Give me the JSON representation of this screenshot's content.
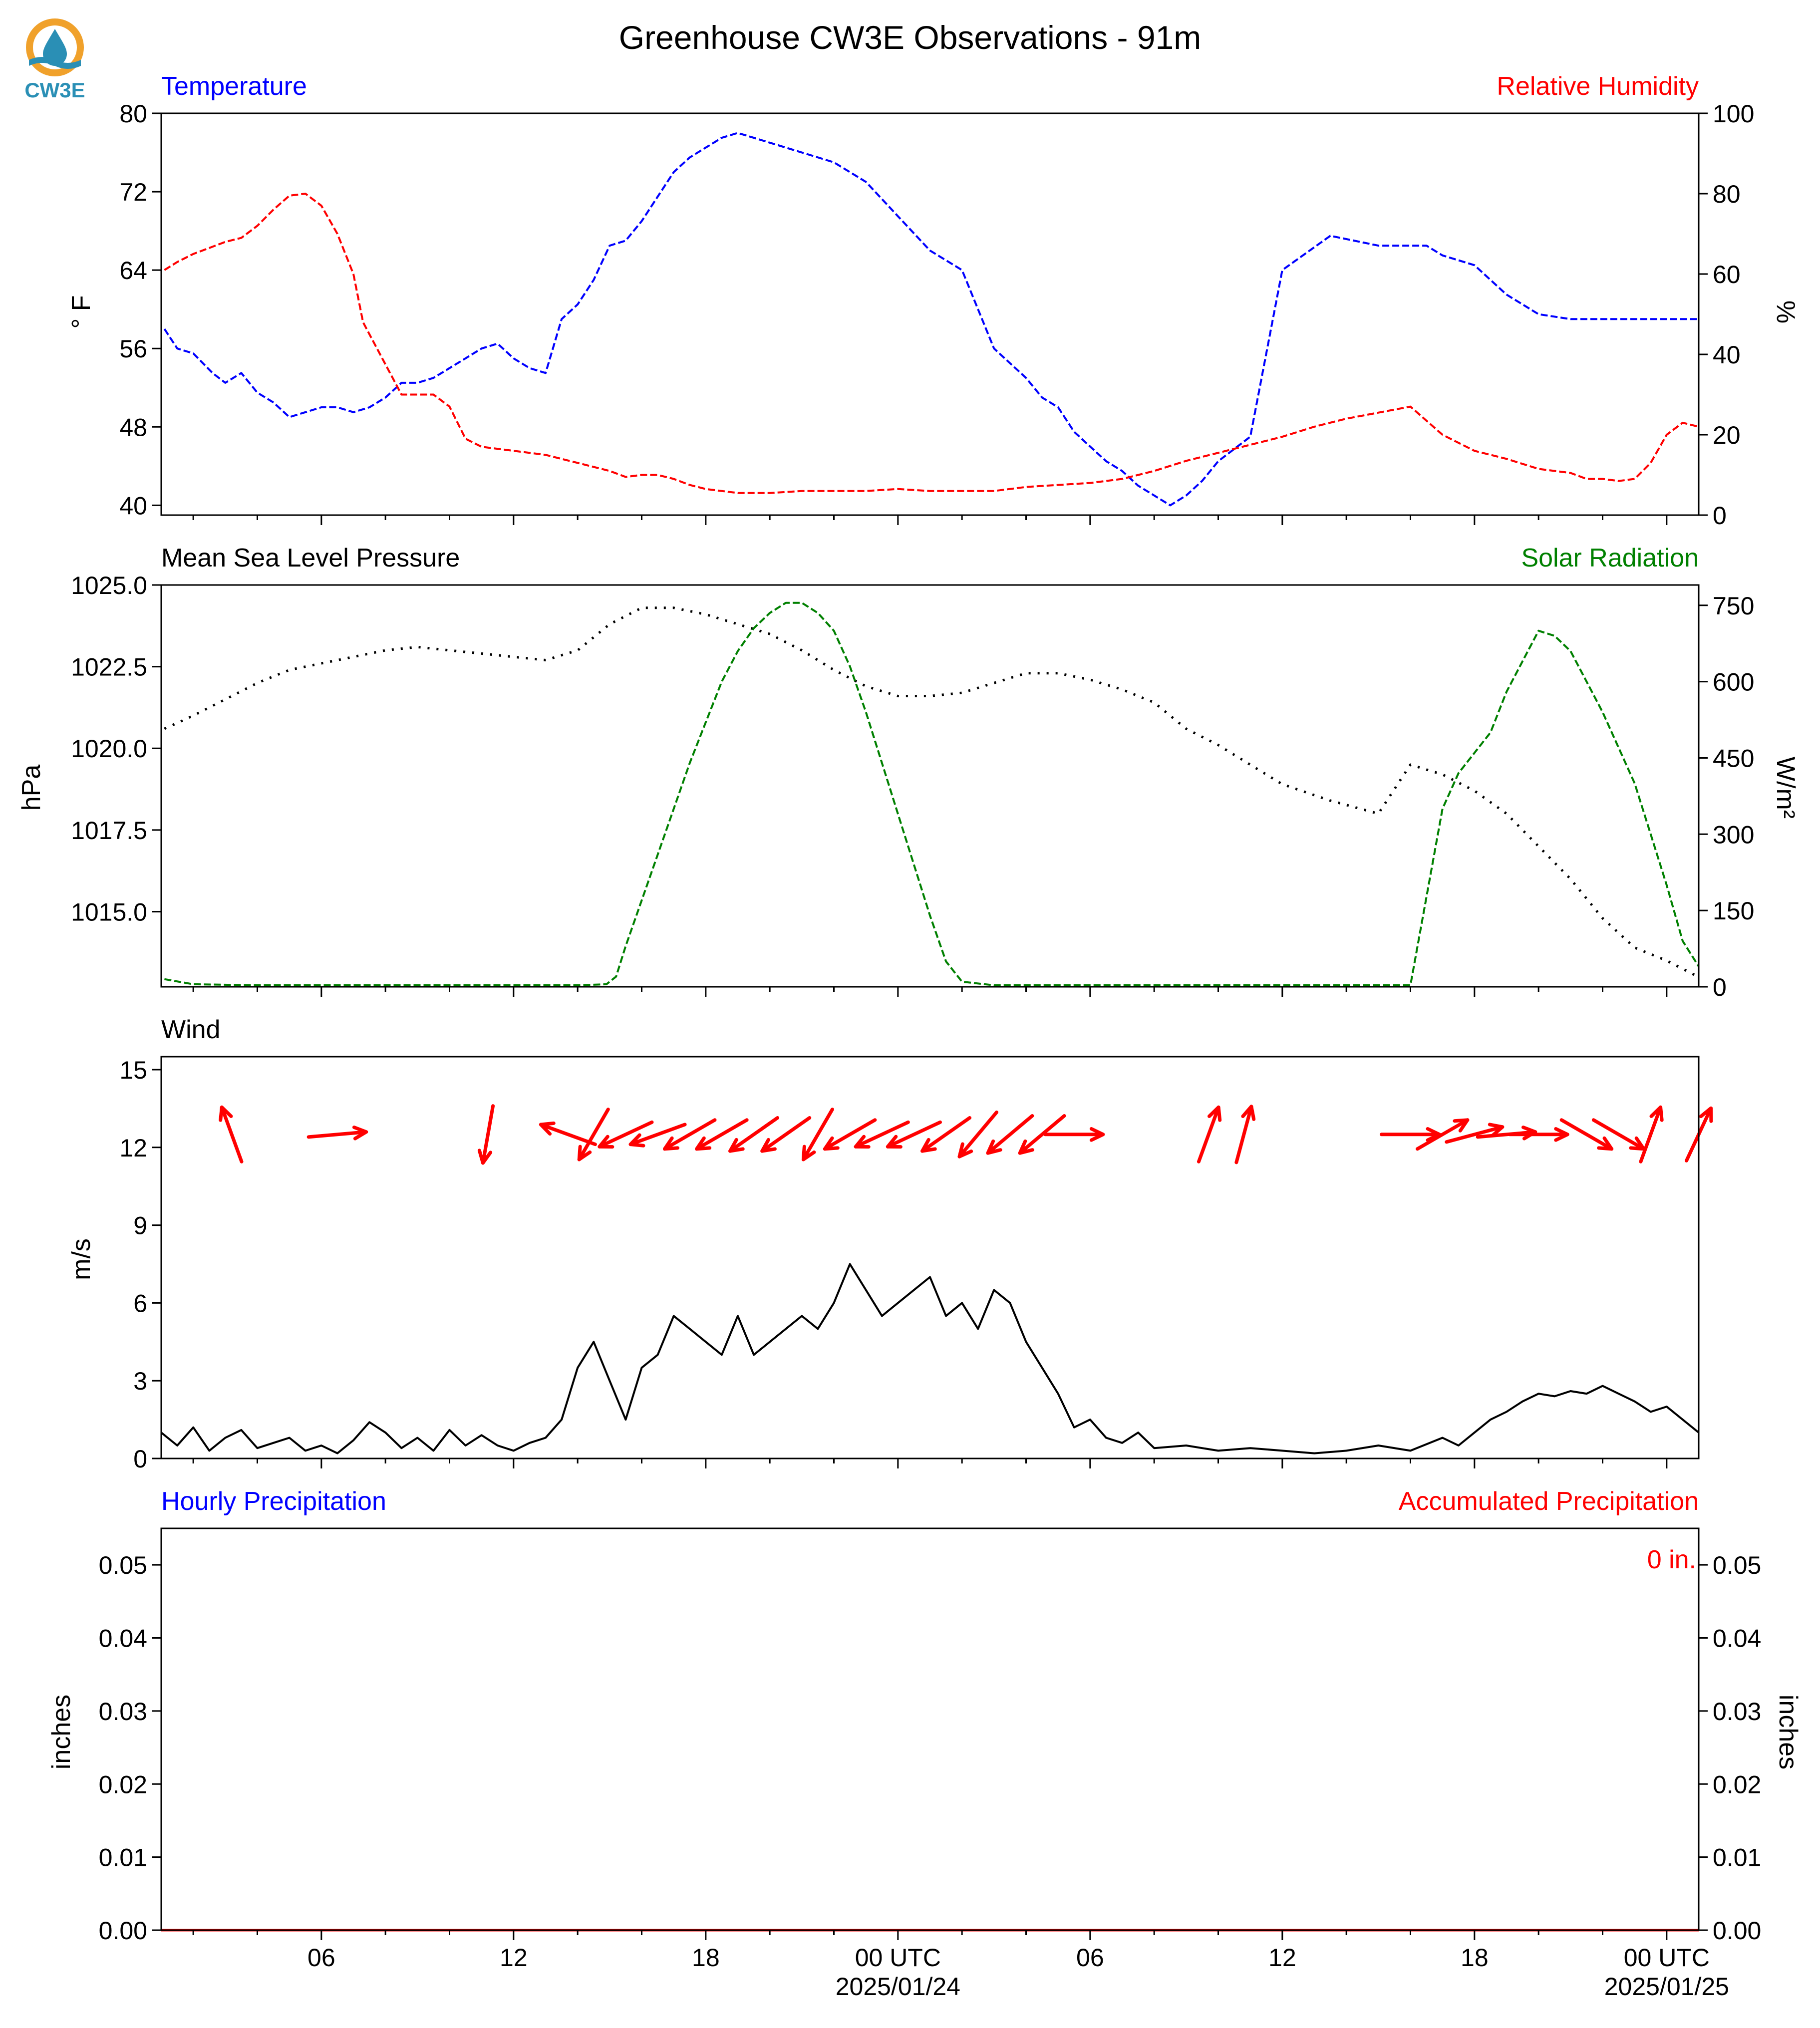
{
  "title": "Greenhouse CW3E Observations - 91m",
  "logo": {
    "text": "CW3E",
    "colors": {
      "ring": "#f0a12b",
      "drop": "#2a8fb5",
      "text": "#2a8fb5"
    }
  },
  "x_axis": {
    "tick_labels": [
      "06",
      "12",
      "18",
      "00 UTC",
      "06",
      "12",
      "18",
      "00 UTC"
    ],
    "date_labels": [
      "2025/01/24",
      "2025/01/25"
    ],
    "tick_hours": [
      6,
      12,
      18,
      24,
      30,
      36,
      42,
      48
    ],
    "major_every_h": 6,
    "minor_every_h": 2,
    "range_h": [
      1,
      49
    ]
  },
  "colors": {
    "temperature": "#0000ff",
    "humidity": "#ff0000",
    "pressure": "#000000",
    "solar": "#008000",
    "wind": "#000000",
    "barbs": "#ff0000",
    "precip_hourly": "#0000ff",
    "precip_accum": "#ff0000"
  },
  "chart_data": [
    {
      "type": "line",
      "panel": "temperature_humidity",
      "left_title": "Temperature",
      "right_title": "Relative Humidity",
      "ylabel_left": "° F",
      "ylabel_right": "%",
      "ylim_left": [
        39,
        80
      ],
      "ylim_right": [
        0,
        100
      ],
      "yticks_left": [
        40,
        48,
        56,
        64,
        72,
        80
      ],
      "yticks_right": [
        0,
        20,
        40,
        60,
        80,
        100
      ],
      "series": [
        {
          "name": "Temperature",
          "axis": "left",
          "color": "#0000ff",
          "style": "dashed",
          "x": [
            1.1,
            1.5,
            2.0,
            2.6,
            3.0,
            3.5,
            4.0,
            4.5,
            5.0,
            5.5,
            6.0,
            6.5,
            7.0,
            7.5,
            8.0,
            8.5,
            9.0,
            9.5,
            10.0,
            10.5,
            11.0,
            11.5,
            12.0,
            12.5,
            13.0,
            13.5,
            14.0,
            14.5,
            15.0,
            15.5,
            16.0,
            16.5,
            17.0,
            17.5,
            18.0,
            18.5,
            19.0,
            19.5,
            20.0,
            20.5,
            21.0,
            22.0,
            23.0,
            24.0,
            25.0,
            26.0,
            26.5,
            27.0,
            27.5,
            28.0,
            28.5,
            29.0,
            29.5,
            30.0,
            30.5,
            31.0,
            31.5,
            32.0,
            32.5,
            33.0,
            33.5,
            34.0,
            35.0,
            36.0,
            37.5,
            39.0,
            40.5,
            41.0,
            41.5,
            42.0,
            42.5,
            43.0,
            44.0,
            45.0,
            45.5,
            46.0,
            46.5,
            47.0,
            47.5,
            48.0,
            48.5,
            49.0
          ],
          "y": [
            58,
            56,
            55.5,
            53.5,
            52.5,
            53.5,
            51.5,
            50.5,
            49,
            49.5,
            50,
            50,
            49.5,
            50,
            51,
            52.5,
            52.5,
            53,
            54,
            55,
            56,
            56.5,
            55,
            54,
            53.5,
            59,
            60.5,
            63,
            66.5,
            67,
            69,
            71.5,
            74,
            75.5,
            76.5,
            77.5,
            78,
            77.5,
            77,
            76.5,
            76,
            75,
            73,
            69.5,
            66,
            64,
            60,
            56,
            54.5,
            53,
            51,
            50,
            47.5,
            46,
            44.5,
            43.5,
            42,
            41,
            40,
            41,
            42.5,
            44.5,
            47,
            64,
            67.5,
            66.5,
            66.5,
            65.5,
            65,
            64.5,
            63,
            61.5,
            59.5,
            59,
            59,
            59,
            59,
            59,
            59,
            59,
            59,
            59
          ]
        },
        {
          "name": "Relative Humidity",
          "axis": "right",
          "color": "#ff0000",
          "style": "dashed",
          "x": [
            1.1,
            1.5,
            2.0,
            2.5,
            3.0,
            3.5,
            4.0,
            4.5,
            5.0,
            5.5,
            6.0,
            6.5,
            7.0,
            7.3,
            8.5,
            9.5,
            10.0,
            10.5,
            11.0,
            12.0,
            13.0,
            14.0,
            15.0,
            15.5,
            16.0,
            16.5,
            17.0,
            17.5,
            18.0,
            19.0,
            20.0,
            21.0,
            22.0,
            23.0,
            24.0,
            25.0,
            26.0,
            27.0,
            28.0,
            29.0,
            30.0,
            31.0,
            32.0,
            33.0,
            34.0,
            35.0,
            36.0,
            37.0,
            38.0,
            39.0,
            40.0,
            41.0,
            42.0,
            43.0,
            44.0,
            45.0,
            45.5,
            46.0,
            46.5,
            47.0,
            47.5,
            48.0,
            48.5,
            49.0
          ],
          "y": [
            61,
            63,
            65,
            66.5,
            68,
            69,
            72,
            76,
            79.5,
            80,
            77,
            70,
            60,
            48,
            30,
            30,
            27,
            19,
            17,
            16,
            15,
            13,
            11,
            9.5,
            10,
            10,
            9,
            7.5,
            6.5,
            5.5,
            5.5,
            6,
            6,
            6,
            6.5,
            6,
            6,
            6,
            7,
            7.5,
            8,
            9,
            11,
            13.5,
            15.5,
            17.5,
            19.5,
            22,
            24,
            25.5,
            27,
            20,
            16,
            14,
            11.5,
            10.5,
            9,
            9,
            8.5,
            9,
            13,
            20,
            23,
            22
          ]
        }
      ]
    },
    {
      "type": "line",
      "panel": "pressure_solar",
      "left_title": "Mean Sea Level Pressure",
      "right_title": "Solar Radiation",
      "ylabel_left": "hPa",
      "ylabel_right": "W/m²",
      "ylim_left": [
        1012.7,
        1025
      ],
      "ylim_right": [
        0,
        790
      ],
      "yticks_left": [
        1015.0,
        1017.5,
        1020.0,
        1022.5,
        1025.0
      ],
      "yticks_right": [
        0,
        150,
        300,
        450,
        600,
        750
      ],
      "series": [
        {
          "name": "Mean Sea Level Pressure",
          "axis": "left",
          "color": "#000000",
          "style": "dotted",
          "x": [
            1.1,
            2.0,
            3.0,
            4.0,
            5.0,
            6.0,
            7.0,
            8.0,
            9.0,
            10.0,
            11.0,
            12.0,
            13.0,
            14.0,
            15.0,
            16.0,
            17.0,
            18.0,
            19.0,
            20.0,
            21.0,
            22.0,
            23.0,
            24.0,
            25.0,
            26.0,
            27.0,
            28.0,
            29.0,
            30.0,
            31.0,
            32.0,
            33.0,
            34.0,
            35.0,
            36.0,
            37.5,
            39.0,
            40.0,
            41.0,
            42.0,
            43.0,
            44.0,
            45.0,
            46.0,
            47.0,
            48.0,
            49.0
          ],
          "y": [
            1020.6,
            1021.0,
            1021.5,
            1022.0,
            1022.4,
            1022.6,
            1022.8,
            1023.0,
            1023.1,
            1023.0,
            1022.9,
            1022.8,
            1022.7,
            1023.0,
            1023.8,
            1024.3,
            1024.3,
            1024.1,
            1023.8,
            1023.5,
            1023.0,
            1022.4,
            1021.9,
            1021.6,
            1021.6,
            1021.7,
            1022.0,
            1022.3,
            1022.3,
            1022.1,
            1021.8,
            1021.4,
            1020.6,
            1020.1,
            1019.5,
            1018.9,
            1018.4,
            1018.0,
            1019.5,
            1019.2,
            1018.7,
            1018.0,
            1017.0,
            1016.0,
            1014.8,
            1013.9,
            1013.5,
            1013.0
          ]
        },
        {
          "name": "Solar Radiation",
          "axis": "right",
          "color": "#008000",
          "style": "dashed",
          "x": [
            1.1,
            2.0,
            4.0,
            6.0,
            8.0,
            10.0,
            12.0,
            14.0,
            14.9,
            15.2,
            15.5,
            16.0,
            16.5,
            17.0,
            17.5,
            18.0,
            18.5,
            19.0,
            19.5,
            20.0,
            20.5,
            21.0,
            21.5,
            22.0,
            22.5,
            23.0,
            23.5,
            24.0,
            24.5,
            25.0,
            25.5,
            26.0,
            27.0,
            28.0,
            30.0,
            32.0,
            34.0,
            36.0,
            38.0,
            40.0,
            41.0,
            41.5,
            42.0,
            42.5,
            43.0,
            43.5,
            44.0,
            44.5,
            45.0,
            45.5,
            46.0,
            46.5,
            47.0,
            47.5,
            48.0,
            48.5,
            49.0
          ],
          "y": [
            15,
            5,
            3,
            3,
            3,
            3,
            3,
            3,
            5,
            20,
            80,
            170,
            260,
            350,
            440,
            520,
            600,
            660,
            705,
            735,
            755,
            755,
            735,
            700,
            630,
            540,
            440,
            340,
            240,
            140,
            50,
            10,
            3,
            3,
            3,
            3,
            3,
            3,
            3,
            3,
            350,
            420,
            460,
            500,
            580,
            640,
            700,
            690,
            660,
            600,
            540,
            470,
            400,
            300,
            200,
            90,
            40
          ]
        }
      ]
    },
    {
      "type": "line",
      "panel": "wind",
      "left_title": "Wind",
      "ylabel_left": "m/s",
      "ylim_left": [
        0,
        15.5
      ],
      "yticks_left": [
        0,
        3,
        6,
        9,
        12,
        15
      ],
      "series": [
        {
          "name": "Wind",
          "axis": "left",
          "color": "#000000",
          "style": "solid",
          "x": [
            1.0,
            1.5,
            2.0,
            2.5,
            3.0,
            3.5,
            4.0,
            4.5,
            5.0,
            5.5,
            6.0,
            6.5,
            7.0,
            7.5,
            8.0,
            8.5,
            9.0,
            9.5,
            10.0,
            10.5,
            11.0,
            11.5,
            12.0,
            12.5,
            13.0,
            13.5,
            14.0,
            14.5,
            15.0,
            15.5,
            16.0,
            16.5,
            17.0,
            17.5,
            18.0,
            18.5,
            19.0,
            19.5,
            20.0,
            20.5,
            21.0,
            21.5,
            22.0,
            22.5,
            23.0,
            23.5,
            24.0,
            24.5,
            25.0,
            25.5,
            26.0,
            26.5,
            27.0,
            27.5,
            28.0,
            28.5,
            29.0,
            29.5,
            30.0,
            30.5,
            31.0,
            31.5,
            32.0,
            33.0,
            34.0,
            35.0,
            36.0,
            37.0,
            38.0,
            39.0,
            40.0,
            41.0,
            41.5,
            42.0,
            42.5,
            43.0,
            43.5,
            44.0,
            44.5,
            45.0,
            45.5,
            46.0,
            46.5,
            47.0,
            47.5,
            48.0,
            48.5,
            49.0
          ],
          "y": [
            1.0,
            0.5,
            1.2,
            0.3,
            0.8,
            1.1,
            0.4,
            0.6,
            0.8,
            0.3,
            0.5,
            0.2,
            0.7,
            1.4,
            1.0,
            0.4,
            0.8,
            0.3,
            1.1,
            0.5,
            0.9,
            0.5,
            0.3,
            0.6,
            0.8,
            1.5,
            3.5,
            4.5,
            3.0,
            1.5,
            3.5,
            4.0,
            5.5,
            5.0,
            4.5,
            4.0,
            5.5,
            4.0,
            4.5,
            5.0,
            5.5,
            5.0,
            6.0,
            7.5,
            6.5,
            5.5,
            6.0,
            6.5,
            7.0,
            5.5,
            6.0,
            5.0,
            6.5,
            6.0,
            4.5,
            3.5,
            2.5,
            1.2,
            1.5,
            0.8,
            0.6,
            1.0,
            0.4,
            0.5,
            0.3,
            0.4,
            0.3,
            0.2,
            0.3,
            0.5,
            0.3,
            0.8,
            0.5,
            1.0,
            1.5,
            1.8,
            2.2,
            2.5,
            2.4,
            2.6,
            2.5,
            2.8,
            2.5,
            2.2,
            1.8,
            2.0,
            1.5,
            1.0
          ]
        }
      ],
      "barbs": {
        "speed_level": 12.5,
        "x": [
          3.2,
          6.5,
          11.2,
          13.7,
          14.5,
          15.5,
          16.5,
          17.5,
          18.5,
          19.5,
          20.5,
          21.5,
          22.5,
          23.5,
          24.5,
          25.5,
          26.5,
          27.5,
          28.5,
          29.5,
          33.7,
          34.8,
          40.0,
          41.0,
          42.0,
          43.0,
          44.0,
          45.5,
          46.5,
          47.5,
          49.0
        ],
        "direction_deg": [
          160,
          265,
          10,
          110,
          30,
          65,
          70,
          60,
          60,
          55,
          55,
          30,
          60,
          65,
          65,
          55,
          40,
          50,
          50,
          270,
          200,
          195,
          270,
          240,
          255,
          265,
          270,
          300,
          300,
          200,
          205
        ]
      }
    },
    {
      "type": "bar",
      "panel": "precipitation",
      "left_title": "Hourly Precipitation",
      "right_title": "Accumulated Precipitation",
      "ylabel_left": "inches",
      "ylabel_right": "inches",
      "ylim_left": [
        0,
        0.055
      ],
      "ylim_right": [
        0,
        0.055
      ],
      "yticks_left": [
        0.0,
        0.01,
        0.02,
        0.03,
        0.04,
        0.05
      ],
      "yticks_right": [
        0.0,
        0.01,
        0.02,
        0.03,
        0.04,
        0.05
      ],
      "accumulated_label": "0 in.",
      "series": [
        {
          "name": "Hourly Precipitation",
          "axis": "left",
          "color": "#0000ff",
          "x": [],
          "values": []
        },
        {
          "name": "Accumulated Precipitation",
          "axis": "right",
          "color": "#ff0000",
          "x": [
            1,
            49
          ],
          "values": [
            0,
            0
          ]
        }
      ]
    }
  ]
}
